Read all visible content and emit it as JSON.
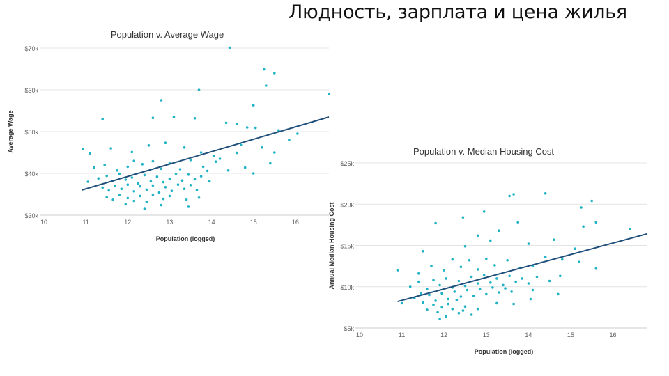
{
  "slide": {
    "title": "Людность, зарплата и цена жилья"
  },
  "colors": {
    "points": "#1fb3c5",
    "trend": "#1f4f7a",
    "grid": "#e4e4e4"
  },
  "chart_data": [
    {
      "id": "wage",
      "type": "scatter",
      "title": "Population v. Average Wage",
      "xlabel": "Population (logged)",
      "ylabel": "Average Wage",
      "xlim": [
        10,
        16.8
      ],
      "ylim": [
        30,
        70
      ],
      "xticks": [
        10,
        11,
        12,
        13,
        14,
        15,
        16
      ],
      "xtick_labels": [
        "10",
        "11",
        "12",
        "13",
        "14",
        "15",
        "16"
      ],
      "yticks": [
        30,
        40,
        50,
        60,
        70
      ],
      "ytick_labels": [
        "$30k",
        "$40k",
        "$50k",
        "$60k",
        "$70k"
      ],
      "grid": true,
      "trendline": {
        "x": [
          10.9,
          16.8
        ],
        "y": [
          36.0,
          53.5
        ]
      },
      "points": [
        [
          14.43,
          70.1
        ],
        [
          15.25,
          64.9
        ],
        [
          15.5,
          64.0
        ],
        [
          15.3,
          61.0
        ],
        [
          13.7,
          60.0
        ],
        [
          16.8,
          59.0
        ],
        [
          12.8,
          57.5
        ],
        [
          15.0,
          56.3
        ],
        [
          11.4,
          53.0
        ],
        [
          12.6,
          53.3
        ],
        [
          13.1,
          53.5
        ],
        [
          13.6,
          53.2
        ],
        [
          14.35,
          52.1
        ],
        [
          14.6,
          51.8
        ],
        [
          14.85,
          51.0
        ],
        [
          15.05,
          50.9
        ],
        [
          15.6,
          50.3
        ],
        [
          16.05,
          49.5
        ],
        [
          10.93,
          45.8
        ],
        [
          11.1,
          44.8
        ],
        [
          11.6,
          46.0
        ],
        [
          12.1,
          45.1
        ],
        [
          12.5,
          46.7
        ],
        [
          12.9,
          47.3
        ],
        [
          13.35,
          46.2
        ],
        [
          13.75,
          45.0
        ],
        [
          14.05,
          44.2
        ],
        [
          14.6,
          44.9
        ],
        [
          15.2,
          46.2
        ],
        [
          15.5,
          45.0
        ],
        [
          11.2,
          41.4
        ],
        [
          11.45,
          42.0
        ],
        [
          11.75,
          40.7
        ],
        [
          12.0,
          41.6
        ],
        [
          12.15,
          43.0
        ],
        [
          12.35,
          42.2
        ],
        [
          12.6,
          42.9
        ],
        [
          12.8,
          41.1
        ],
        [
          13.0,
          42.4
        ],
        [
          13.25,
          41.0
        ],
        [
          13.5,
          43.2
        ],
        [
          13.8,
          41.6
        ],
        [
          14.1,
          42.8
        ],
        [
          14.4,
          40.7
        ],
        [
          14.8,
          41.4
        ],
        [
          15.4,
          42.4
        ],
        [
          15.0,
          40.0
        ],
        [
          13.9,
          40.6
        ],
        [
          11.05,
          38.0
        ],
        [
          11.3,
          38.8
        ],
        [
          11.5,
          39.4
        ],
        [
          11.65,
          38.2
        ],
        [
          11.8,
          39.9
        ],
        [
          11.95,
          38.5
        ],
        [
          12.1,
          39.0
        ],
        [
          12.25,
          37.6
        ],
        [
          12.4,
          39.6
        ],
        [
          12.55,
          38.1
        ],
        [
          12.7,
          39.2
        ],
        [
          12.85,
          37.9
        ],
        [
          13.0,
          38.7
        ],
        [
          13.15,
          39.9
        ],
        [
          13.3,
          38.3
        ],
        [
          13.45,
          39.7
        ],
        [
          13.6,
          38.6
        ],
        [
          13.75,
          39.3
        ],
        [
          11.4,
          36.6
        ],
        [
          11.55,
          35.9
        ],
        [
          11.7,
          37.0
        ],
        [
          11.85,
          36.3
        ],
        [
          12.0,
          37.3
        ],
        [
          12.15,
          35.7
        ],
        [
          12.3,
          36.9
        ],
        [
          12.45,
          36.1
        ],
        [
          12.6,
          37.1
        ],
        [
          12.75,
          35.4
        ],
        [
          12.9,
          36.7
        ],
        [
          13.05,
          35.8
        ],
        [
          13.2,
          37.3
        ],
        [
          13.35,
          36.3
        ],
        [
          13.5,
          37.2
        ],
        [
          13.65,
          36.0
        ],
        [
          11.5,
          34.3
        ],
        [
          11.65,
          33.7
        ],
        [
          11.8,
          34.8
        ],
        [
          12.0,
          34.1
        ],
        [
          12.15,
          33.4
        ],
        [
          12.3,
          34.6
        ],
        [
          12.45,
          33.2
        ],
        [
          12.6,
          34.9
        ],
        [
          12.85,
          33.9
        ],
        [
          13.0,
          34.6
        ],
        [
          13.4,
          33.7
        ],
        [
          13.7,
          34.2
        ],
        [
          13.45,
          32.0
        ],
        [
          12.4,
          31.5
        ],
        [
          12.8,
          32.4
        ],
        [
          11.95,
          32.6
        ],
        [
          14.2,
          43.5
        ],
        [
          14.7,
          46.8
        ],
        [
          15.85,
          48.0
        ],
        [
          13.95,
          38.1
        ]
      ]
    },
    {
      "id": "housing",
      "type": "scatter",
      "title": "Population v. Median Housing Cost",
      "xlabel": "Population (logged)",
      "ylabel": "Annual Median Housing Cost",
      "xlim": [
        10,
        16.8
      ],
      "ylim": [
        5,
        25
      ],
      "xticks": [
        10,
        11,
        12,
        13,
        14,
        15,
        16
      ],
      "xtick_labels": [
        "10",
        "11",
        "12",
        "13",
        "14",
        "15",
        "16"
      ],
      "yticks": [
        5,
        10,
        15,
        20,
        25
      ],
      "ytick_labels": [
        "$5k",
        "$10k",
        "$15k",
        "$20k",
        "$25k"
      ],
      "grid": true,
      "trendline": {
        "x": [
          10.9,
          16.8
        ],
        "y": [
          8.2,
          16.4
        ]
      },
      "points": [
        [
          13.55,
          21.0
        ],
        [
          13.65,
          21.2
        ],
        [
          14.4,
          21.3
        ],
        [
          15.5,
          20.4
        ],
        [
          15.25,
          19.6
        ],
        [
          12.95,
          19.1
        ],
        [
          12.45,
          18.4
        ],
        [
          11.8,
          17.7
        ],
        [
          13.75,
          17.8
        ],
        [
          15.6,
          17.8
        ],
        [
          15.3,
          17.3
        ],
        [
          16.4,
          17.0
        ],
        [
          11.5,
          14.3
        ],
        [
          12.5,
          14.9
        ],
        [
          12.8,
          16.2
        ],
        [
          13.1,
          15.6
        ],
        [
          13.3,
          16.8
        ],
        [
          14.0,
          15.2
        ],
        [
          14.6,
          15.7
        ],
        [
          15.1,
          14.6
        ],
        [
          10.9,
          12.0
        ],
        [
          11.4,
          11.6
        ],
        [
          11.7,
          12.5
        ],
        [
          12.0,
          12.0
        ],
        [
          12.2,
          13.3
        ],
        [
          12.4,
          12.4
        ],
        [
          12.6,
          13.2
        ],
        [
          12.8,
          12.1
        ],
        [
          13.0,
          13.4
        ],
        [
          13.2,
          12.6
        ],
        [
          13.5,
          13.2
        ],
        [
          13.8,
          12.3
        ],
        [
          14.1,
          12.5
        ],
        [
          14.4,
          13.6
        ],
        [
          14.8,
          13.3
        ],
        [
          15.2,
          13.0
        ],
        [
          15.6,
          12.2
        ],
        [
          11.2,
          10.0
        ],
        [
          11.4,
          10.6
        ],
        [
          11.6,
          9.7
        ],
        [
          11.75,
          10.8
        ],
        [
          11.9,
          10.2
        ],
        [
          12.05,
          11.0
        ],
        [
          12.2,
          9.9
        ],
        [
          12.35,
          10.7
        ],
        [
          12.5,
          10.1
        ],
        [
          12.65,
          11.2
        ],
        [
          12.8,
          10.4
        ],
        [
          12.95,
          11.4
        ],
        [
          13.1,
          10.5
        ],
        [
          13.25,
          11.0
        ],
        [
          13.4,
          10.2
        ],
        [
          13.55,
          11.3
        ],
        [
          13.7,
          10.6
        ],
        [
          13.85,
          11.0
        ],
        [
          14.0,
          10.4
        ],
        [
          14.2,
          11.2
        ],
        [
          14.5,
          10.7
        ],
        [
          14.75,
          11.3
        ],
        [
          11.0,
          8.0
        ],
        [
          11.3,
          8.6
        ],
        [
          11.5,
          8.1
        ],
        [
          11.65,
          9.0
        ],
        [
          11.8,
          8.3
        ],
        [
          11.95,
          9.2
        ],
        [
          12.1,
          8.5
        ],
        [
          12.25,
          9.4
        ],
        [
          12.4,
          8.8
        ],
        [
          12.55,
          9.6
        ],
        [
          12.7,
          8.9
        ],
        [
          12.85,
          9.7
        ],
        [
          13.0,
          9.1
        ],
        [
          13.15,
          9.9
        ],
        [
          13.3,
          9.3
        ],
        [
          13.45,
          9.8
        ],
        [
          13.6,
          9.4
        ],
        [
          11.6,
          7.2
        ],
        [
          11.75,
          7.8
        ],
        [
          11.85,
          6.9
        ],
        [
          11.95,
          7.5
        ],
        [
          12.05,
          6.4
        ],
        [
          12.2,
          7.3
        ],
        [
          12.35,
          6.8
        ],
        [
          12.5,
          7.6
        ],
        [
          12.65,
          6.6
        ],
        [
          12.8,
          7.3
        ],
        [
          11.9,
          6.1
        ],
        [
          12.1,
          7.9
        ],
        [
          12.3,
          8.4
        ],
        [
          12.45,
          7.1
        ],
        [
          13.25,
          8.0
        ],
        [
          13.65,
          7.9
        ],
        [
          14.05,
          8.5
        ],
        [
          14.7,
          9.1
        ],
        [
          14.1,
          9.6
        ],
        [
          11.45,
          9.2
        ]
      ]
    }
  ]
}
